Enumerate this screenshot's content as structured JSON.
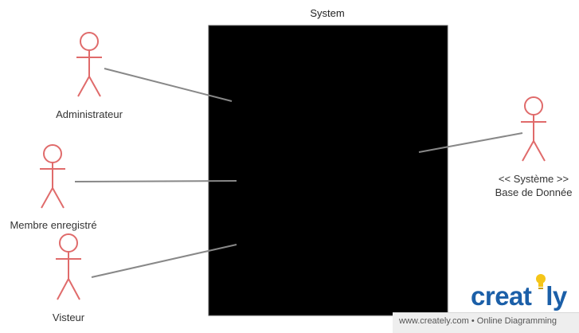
{
  "system": {
    "title": "System"
  },
  "actors": [
    {
      "id": "administrateur",
      "label": "Administrateur"
    },
    {
      "id": "membre",
      "label": "Membre enregistré"
    },
    {
      "id": "visiteur",
      "label": "Visteur"
    },
    {
      "id": "systeme",
      "label_line1": "<< Système >>",
      "label_line2": "Base de Donnée"
    }
  ],
  "colors": {
    "actor": "#e06b6b",
    "association": "#888888",
    "system_box": "#000000",
    "brand_blue": "#1b5fa8",
    "brand_yellow": "#f5c518"
  },
  "branding": {
    "logo_prefix": "creat",
    "logo_suffix": "ly",
    "footer": "www.creately.com • Online Diagramming"
  }
}
